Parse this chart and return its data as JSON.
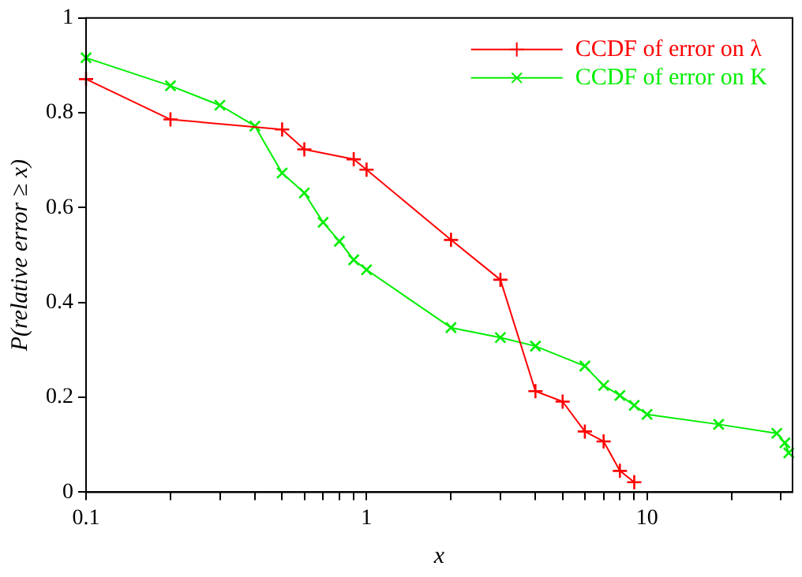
{
  "chart_data": {
    "type": "line",
    "xlabel": "x",
    "ylabel": "P(relative error ≥ x)",
    "log": "x",
    "xlim": [
      0.1,
      33
    ],
    "ylim": [
      0,
      1
    ],
    "xticks": [
      0.1,
      {
        "value": 0.2,
        "label": null
      },
      {
        "value": 0.3,
        "label": null
      },
      {
        "value": 0.4,
        "label": null
      },
      {
        "value": 0.5,
        "label": null
      },
      {
        "value": 0.6,
        "label": null
      },
      {
        "value": 0.7,
        "label": null
      },
      {
        "value": 0.8,
        "label": null
      },
      {
        "value": 0.9,
        "label": null
      },
      1,
      {
        "value": 2,
        "label": null
      },
      {
        "value": 3,
        "label": null
      },
      {
        "value": 4,
        "label": null
      },
      {
        "value": 5,
        "label": null
      },
      {
        "value": 6,
        "label": null
      },
      {
        "value": 7,
        "label": null
      },
      {
        "value": 8,
        "label": null
      },
      {
        "value": 9,
        "label": null
      },
      10,
      {
        "value": 20,
        "label": null
      },
      {
        "value": 30,
        "label": null
      }
    ],
    "yticks": [
      0,
      0.2,
      0.4,
      0.6,
      0.8,
      1
    ],
    "grid": false,
    "legend": "top right",
    "line_style": "solid",
    "series": [
      {
        "name": "CCDF of error on λ",
        "color": "#ff0000",
        "marker": "cross",
        "x": [
          0.1,
          0.2,
          0.5,
          0.6,
          0.9,
          1,
          2,
          3,
          4,
          5,
          6,
          7,
          8,
          9
        ],
        "values": [
          0.871,
          0.786,
          0.765,
          0.723,
          0.702,
          0.68,
          0.532,
          0.448,
          0.213,
          0.191,
          0.128,
          0.107,
          0.045,
          0.021
        ]
      },
      {
        "name": "CCDF of error on K",
        "color": "#00ee00",
        "marker": "x",
        "x": [
          0.1,
          0.2,
          0.3,
          0.4,
          0.5,
          0.6,
          0.7,
          0.8,
          0.9,
          1,
          2,
          3,
          4,
          6,
          7,
          8,
          9,
          10,
          18,
          29,
          31,
          32
        ],
        "values": [
          0.916,
          0.857,
          0.816,
          0.772,
          0.673,
          0.631,
          0.569,
          0.529,
          0.49,
          0.469,
          0.347,
          0.326,
          0.308,
          0.266,
          0.225,
          0.204,
          0.183,
          0.164,
          0.143,
          0.124,
          0.104,
          0.083
        ]
      }
    ]
  }
}
